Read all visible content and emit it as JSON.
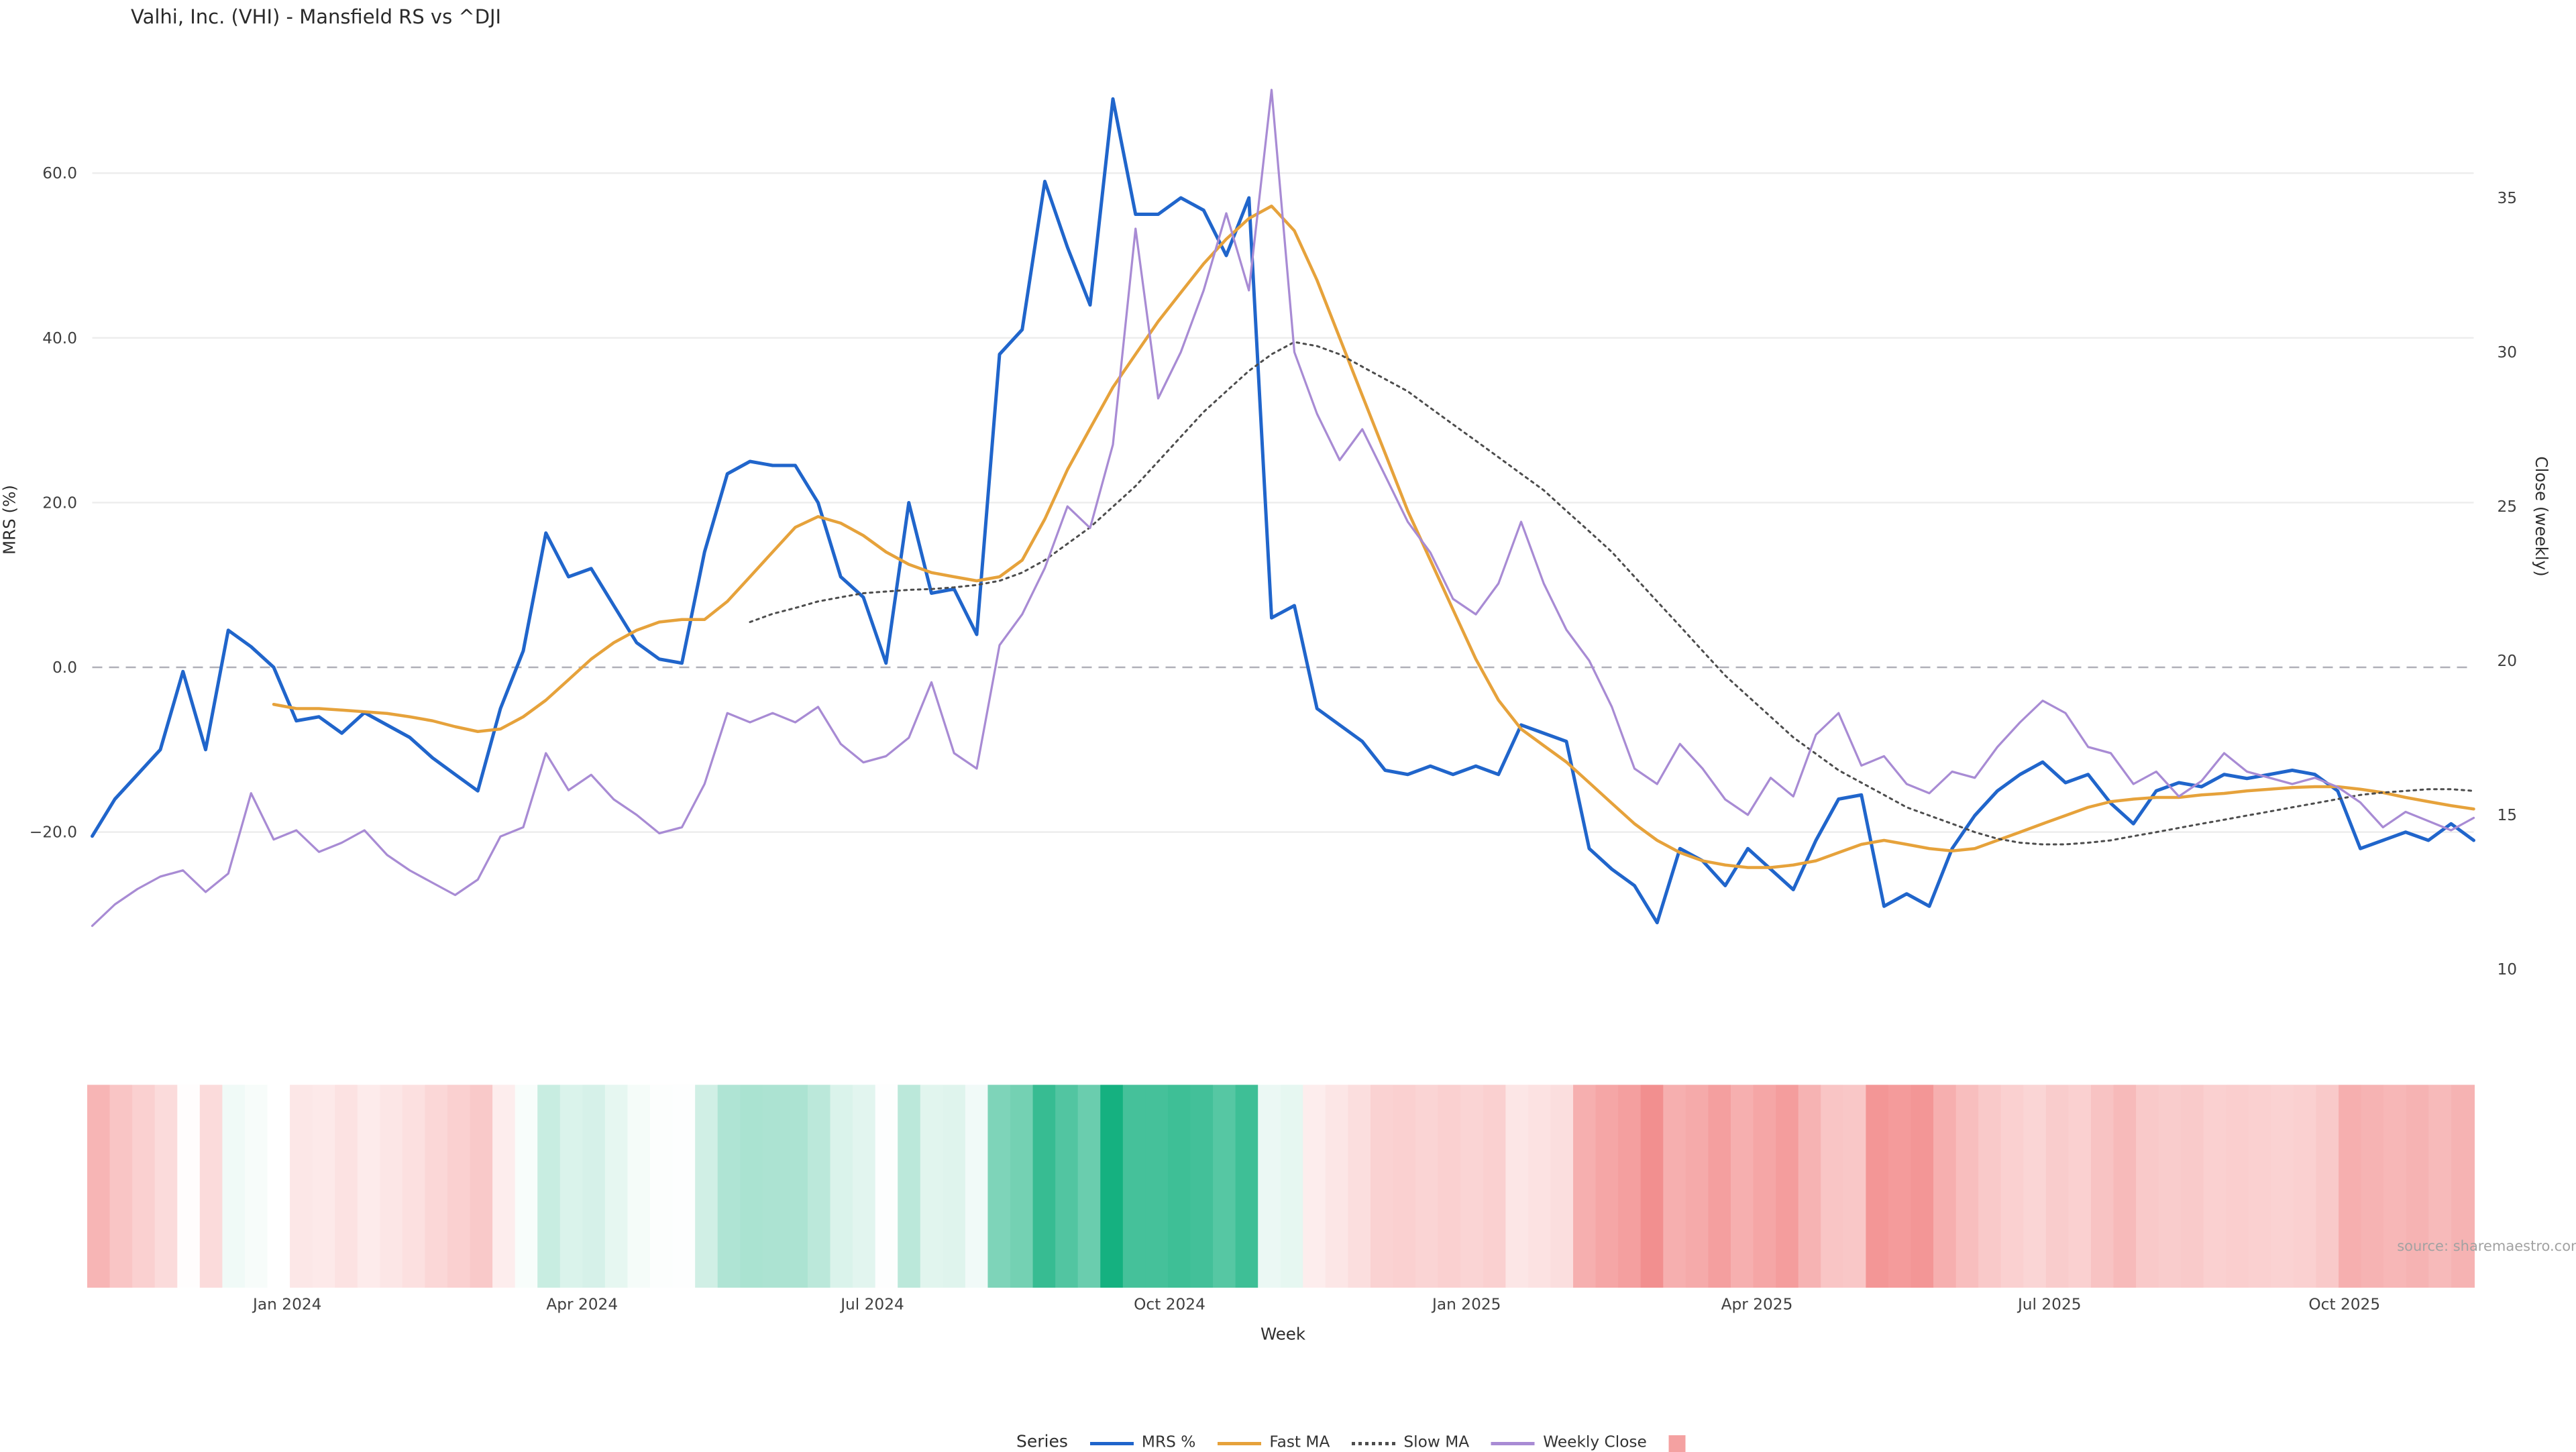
{
  "title": "Valhi, Inc. (VHI) - Mansfield RS vs ^DJI",
  "source": "source: sharemaestro.com",
  "legend": {
    "title": "Series",
    "items": [
      {
        "label": "MRS %",
        "slug": "mrs",
        "color": "#2065cb",
        "style": "solid"
      },
      {
        "label": "Fast MA",
        "slug": "fast-ma",
        "color": "#e6a23b",
        "style": "solid"
      },
      {
        "label": "Slow MA",
        "slug": "slow-ma",
        "color": "#4d4d4d",
        "style": "dotted"
      },
      {
        "label": "Weekly Close",
        "slug": "weekly-close",
        "color": "#a88bd4",
        "style": "solid"
      },
      {
        "label": "",
        "slug": "heatmap",
        "color": "#f4a1a1",
        "style": "swatch"
      }
    ]
  },
  "chart_data": {
    "type": "line",
    "title": "Valhi, Inc. (VHI) - Mansfield RS vs ^DJI",
    "xlabel": "Week",
    "ylabel_left": "MRS (%)",
    "ylabel_right": "Close (weekly)",
    "x_unit": "week index",
    "x_count": 106,
    "x_ticks": [
      {
        "pos": 8.6,
        "label": "Jan 2024"
      },
      {
        "pos": 21.6,
        "label": "Apr 2024"
      },
      {
        "pos": 34.4,
        "label": "Jul 2024"
      },
      {
        "pos": 47.5,
        "label": "Oct 2024"
      },
      {
        "pos": 60.6,
        "label": "Jan 2025"
      },
      {
        "pos": 73.4,
        "label": "Apr 2025"
      },
      {
        "pos": 86.3,
        "label": "Jul 2025"
      },
      {
        "pos": 99.3,
        "label": "Oct 2025"
      }
    ],
    "left_axis": {
      "ticks": [
        60,
        40,
        20,
        0,
        -20
      ],
      "tick_labels": [
        "60.0",
        "40.0",
        "20.0",
        "0.0",
        "−20.0"
      ],
      "range": [
        -34,
        71
      ]
    },
    "right_axis": {
      "ticks": [
        35,
        30,
        25,
        20,
        15,
        10
      ],
      "tick_labels": [
        "35",
        "30",
        "25",
        "20",
        "15",
        "10"
      ],
      "range": [
        6.2,
        39.3
      ]
    },
    "zero_reference_line": 0,
    "grid": "horizontal",
    "legend_position": "bottom-center",
    "series": [
      {
        "name": "MRS %",
        "slug": "mrs",
        "axis": "left",
        "color": "#2065cb",
        "style": "solid",
        "width": 2,
        "values": [
          -20.5,
          -16,
          -13,
          -10,
          -0.5,
          -10,
          4.5,
          2.5,
          0,
          -6.5,
          -6,
          -8,
          -5.5,
          -7,
          -8.5,
          -11,
          -13,
          -15,
          -5,
          2,
          16.3,
          11,
          12,
          7.5,
          3,
          1,
          0.5,
          14,
          23.5,
          25,
          24.5,
          24.5,
          20,
          11,
          8.5,
          0.5,
          20,
          9,
          9.5,
          4,
          38,
          41,
          59,
          51,
          44,
          69,
          55,
          55,
          57,
          55.5,
          50,
          57,
          6,
          7.5,
          -5,
          -7,
          -9,
          -12.5,
          -13,
          -12,
          -13,
          -12,
          -13,
          -7,
          -8,
          -9,
          -22,
          -24.5,
          -26.5,
          -31,
          -22,
          -23.5,
          -26.5,
          -22,
          -24.5,
          -27,
          -21,
          -16,
          -15.5,
          -29,
          -27.5,
          -29,
          -22,
          -18,
          -15,
          -13,
          -11.5,
          -14,
          -13,
          -16.5,
          -19,
          -15,
          -14,
          -14.5,
          -13,
          -13.5,
          -13,
          -12.5,
          -13,
          -15,
          -22,
          -21,
          -20,
          -21,
          -19,
          -21
        ]
      },
      {
        "name": "Fast MA",
        "slug": "fast-ma",
        "axis": "left",
        "color": "#e6a23b",
        "style": "solid",
        "width": 1.8,
        "values": [
          null,
          null,
          null,
          null,
          null,
          null,
          null,
          null,
          -4.5,
          -5,
          -5,
          -5.2,
          -5.4,
          -5.6,
          -6,
          -6.5,
          -7.2,
          -7.8,
          -7.5,
          -6,
          -4,
          -1.5,
          1,
          3,
          4.5,
          5.5,
          5.8,
          5.8,
          8,
          11,
          14,
          17,
          18.3,
          17.5,
          16,
          14,
          12.5,
          11.5,
          11,
          10.5,
          11,
          13,
          18,
          24,
          29,
          34,
          38,
          42,
          45.5,
          49,
          52,
          54.5,
          56,
          53,
          47,
          40,
          33,
          26,
          19,
          13,
          7,
          1,
          -4,
          -7.5,
          -9.5,
          -11.5,
          -14,
          -16.5,
          -19,
          -21,
          -22.5,
          -23.5,
          -24,
          -24.3,
          -24.3,
          -24,
          -23.5,
          -22.5,
          -21.5,
          -21,
          -21.5,
          -22,
          -22.3,
          -22,
          -21,
          -20,
          -19,
          -18,
          -17,
          -16.3,
          -16,
          -15.8,
          -15.8,
          -15.5,
          -15.3,
          -15,
          -14.8,
          -14.6,
          -14.5,
          -14.5,
          -14.8,
          -15.2,
          -15.8,
          -16.3,
          -16.8,
          -17.2
        ]
      },
      {
        "name": "Slow MA",
        "slug": "slow-ma",
        "axis": "left",
        "color": "#4d4d4d",
        "style": "dotted",
        "width": 1.2,
        "values": [
          null,
          null,
          null,
          null,
          null,
          null,
          null,
          null,
          null,
          null,
          null,
          null,
          null,
          null,
          null,
          null,
          null,
          null,
          null,
          null,
          null,
          null,
          null,
          null,
          null,
          null,
          null,
          null,
          null,
          5.5,
          6.5,
          7.2,
          8,
          8.5,
          9,
          9.2,
          9.4,
          9.5,
          9.7,
          10,
          10.5,
          11.5,
          13,
          15,
          17,
          19.5,
          22,
          25,
          28,
          31,
          33.5,
          36,
          38,
          39.5,
          39,
          38,
          36.5,
          35,
          33.5,
          31.5,
          29.5,
          27.5,
          25.5,
          23.5,
          21.5,
          19,
          16.5,
          14,
          11,
          8,
          5,
          2,
          -1,
          -3.5,
          -6,
          -8.5,
          -10.5,
          -12.5,
          -14,
          -15.5,
          -17,
          -18,
          -19,
          -20,
          -20.8,
          -21.3,
          -21.5,
          -21.5,
          -21.3,
          -21,
          -20.5,
          -20,
          -19.5,
          -19,
          -18.5,
          -18,
          -17.5,
          -17,
          -16.5,
          -16,
          -15.5,
          -15.2,
          -15,
          -14.8,
          -14.8,
          -15
        ]
      },
      {
        "name": "Weekly Close",
        "slug": "weekly-close",
        "axis": "right",
        "color": "#a88bd4",
        "style": "solid",
        "width": 1.3,
        "values": [
          11.4,
          12.1,
          12.6,
          13,
          13.2,
          12.5,
          13.1,
          15.7,
          14.2,
          14.5,
          13.8,
          14.1,
          14.5,
          13.7,
          13.2,
          12.8,
          12.4,
          12.9,
          14.3,
          14.6,
          17,
          15.8,
          16.3,
          15.5,
          15,
          14.4,
          14.6,
          16,
          18.3,
          18,
          18.3,
          18,
          18.5,
          17.3,
          16.7,
          16.9,
          17.5,
          19.3,
          17,
          16.5,
          20.5,
          21.5,
          23,
          25,
          24.3,
          27,
          34,
          28.5,
          30,
          32,
          34.5,
          32,
          38.5,
          30,
          28,
          26.5,
          27.5,
          26,
          24.5,
          23.5,
          22,
          21.5,
          22.5,
          24.5,
          22.5,
          21,
          20,
          18.5,
          16.5,
          16,
          17.3,
          16.5,
          15.5,
          15,
          16.2,
          15.6,
          17.6,
          18.3,
          16.6,
          16.9,
          16,
          15.7,
          16.4,
          16.2,
          17.2,
          18,
          18.7,
          18.3,
          17.2,
          17,
          16,
          16.4,
          15.6,
          16.1,
          17,
          16.4,
          16.2,
          16,
          16.2,
          15.9,
          15.4,
          14.6,
          15.1,
          14.8,
          14.5,
          14.9
        ]
      }
    ],
    "heatmap_strip": {
      "source_series": "MRS %",
      "positive_color": "#12b07e",
      "negative_color": "#f28b8b",
      "neutral_color": "#ffffff",
      "scale_max_positive": 70,
      "scale_max_negative": -32
    }
  }
}
